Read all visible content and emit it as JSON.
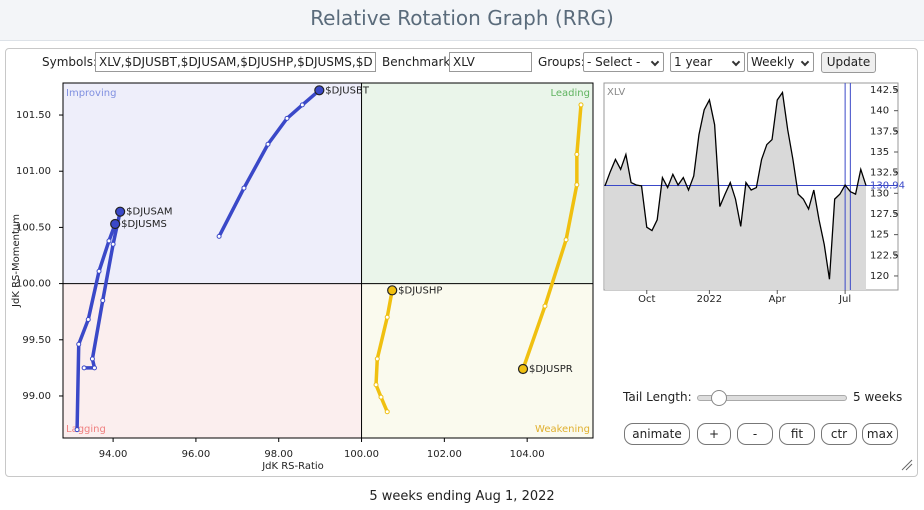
{
  "header": {
    "title": "Relative Rotation Graph (RRG)"
  },
  "toolbar": {
    "symbols_label": "Symbols:",
    "symbols_value": "XLV,$DJUSBT,$DJUSAM,$DJUSHP,$DJUSMS,$D",
    "benchmark_label": "Benchmark:",
    "benchmark_value": "XLV",
    "groups_label": "Groups:",
    "groups_value": "- Select -",
    "period_value": "1 year",
    "frequency_value": "Weekly",
    "update_button": "Update"
  },
  "chart_data": [
    {
      "type": "scatter",
      "x_label": "JdK RS-Ratio",
      "y_label": "JdK RS-Momentum",
      "quadrant_labels": {
        "improving": "Improving",
        "leading": "Leading",
        "lagging": "Lagging",
        "weakening": "Weakening"
      },
      "crosshair": [
        100,
        100
      ],
      "xlim": [
        92.79,
        105.59
      ],
      "ylim": [
        98.626,
        101.785
      ],
      "xticks": [
        {
          "value": 94,
          "label": "94.00"
        },
        {
          "value": 96,
          "label": "96.00"
        },
        {
          "value": 98,
          "label": "98.00"
        },
        {
          "value": 100,
          "label": "100.00"
        },
        {
          "value": 102,
          "label": "102.00"
        },
        {
          "value": 104,
          "label": "104.00"
        }
      ],
      "yticks": [
        {
          "value": 99,
          "label": "99.00"
        },
        {
          "value": 99.5,
          "label": "99.50"
        },
        {
          "value": 100,
          "label": "100.00"
        },
        {
          "value": 100.5,
          "label": "100.50"
        },
        {
          "value": 101,
          "label": "101.00"
        },
        {
          "value": 101.5,
          "label": "101.50"
        }
      ],
      "series": [
        {
          "name": "$DJUSBT",
          "color": "#3a48c8",
          "x": [
            96.56,
            97.16,
            97.74,
            98.2,
            98.57,
            98.98
          ],
          "values": [
            100.42,
            100.85,
            101.24,
            101.47,
            101.59,
            101.72
          ]
        },
        {
          "name": "$DJUSAM",
          "color": "#3a48c8",
          "x": [
            93.3,
            93.55,
            93.5,
            93.75,
            94.0,
            94.17
          ],
          "values": [
            99.25,
            99.25,
            99.33,
            99.85,
            100.35,
            100.64
          ]
        },
        {
          "name": "$DJUSHP",
          "color": "#f0c010",
          "x": [
            100.62,
            100.47,
            100.35,
            100.38,
            100.62,
            100.74
          ],
          "values": [
            98.86,
            98.99,
            99.1,
            99.33,
            99.7,
            99.94
          ]
        },
        {
          "name": "$DJUSMS",
          "color": "#3a48c8",
          "x": [
            93.13,
            93.17,
            93.4,
            93.66,
            93.9,
            94.05
          ],
          "values": [
            98.7,
            99.46,
            99.68,
            100.11,
            100.38,
            100.53
          ]
        },
        {
          "name": "$DJUSPR",
          "color": "#f0c010",
          "x": [
            105.3,
            105.2,
            105.2,
            104.94,
            104.43,
            103.9
          ],
          "values": [
            101.59,
            101.15,
            100.88,
            100.39,
            99.8,
            99.24
          ]
        }
      ]
    },
    {
      "type": "line",
      "title": "XLV",
      "categories": [
        null,
        null,
        null,
        null,
        null,
        null,
        null,
        null,
        "Oct",
        null,
        null,
        null,
        null,
        null,
        null,
        null,
        null,
        null,
        null,
        null,
        "2022",
        null,
        null,
        null,
        null,
        null,
        null,
        null,
        null,
        null,
        null,
        null,
        null,
        "Apr",
        null,
        null,
        null,
        null,
        null,
        null,
        null,
        null,
        null,
        null,
        null,
        null,
        "Jul",
        null,
        null,
        null,
        null
      ],
      "ylim": [
        118.3,
        143.35
      ],
      "yticks": [
        120,
        122.5,
        125,
        127.5,
        130,
        132.5,
        135,
        137.5,
        140,
        142.5
      ],
      "series": [
        {
          "name": "XLV",
          "color": "#000000",
          "values": [
            130.9,
            132.6,
            134.1,
            132.9,
            134.7,
            131.3,
            131.0,
            130.9,
            125.9,
            125.5,
            126.8,
            131.9,
            130.7,
            132.3,
            131.0,
            131.9,
            130.4,
            132.1,
            137.1,
            140.1,
            141.3,
            138.3,
            128.4,
            129.9,
            131.3,
            129.3,
            126.0,
            131.3,
            130.4,
            130.7,
            134.1,
            135.9,
            136.5,
            141.3,
            142.2,
            137.7,
            134.1,
            129.9,
            129.3,
            128.1,
            130.4,
            126.8,
            123.8,
            119.6,
            129.3,
            129.9,
            131.0,
            130.2,
            129.9,
            132.9,
            130.94
          ]
        }
      ]
    }
  ],
  "controls": {
    "tail_label": "Tail Length:",
    "tail_value": "5 weeks",
    "buttons": [
      "animate",
      "+",
      "-",
      "fit",
      "ctr",
      "max"
    ]
  },
  "footer": "5 weeks ending Aug 1, 2022"
}
